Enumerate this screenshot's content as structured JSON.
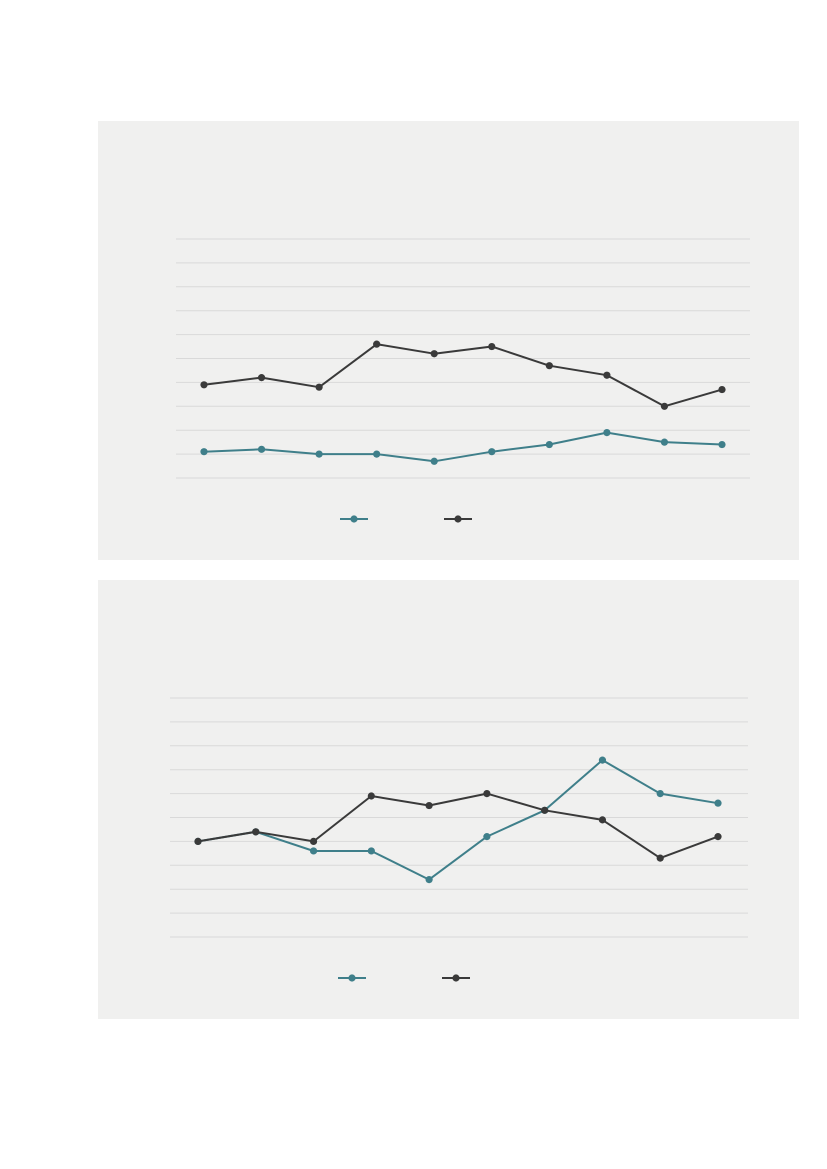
{
  "colors": {
    "series_teal": "#3f7f8a",
    "series_dark": "#3a3a3a",
    "grid": "#d9d9d9",
    "panel_background": "#f0f0ef"
  },
  "chart_data": [
    {
      "type": "line",
      "title": "",
      "xlabel": "",
      "ylabel": "",
      "grid": true,
      "legend_position": "bottom-center",
      "ylim": [
        0,
        10
      ],
      "x": [
        1,
        2,
        3,
        4,
        5,
        6,
        7,
        8,
        9,
        10
      ],
      "series": [
        {
          "color": "#3f7f8a",
          "values": [
            1.1,
            1.2,
            1.0,
            1.0,
            0.7,
            1.1,
            1.4,
            1.9,
            1.5,
            1.4
          ]
        },
        {
          "color": "#3a3a3a",
          "values": [
            3.9,
            4.2,
            3.8,
            5.6,
            5.2,
            5.5,
            4.7,
            4.3,
            3.0,
            3.7
          ]
        }
      ]
    },
    {
      "type": "line",
      "title": "",
      "xlabel": "",
      "ylabel": "",
      "grid": true,
      "legend_position": "bottom-center",
      "ylim": [
        0,
        10
      ],
      "x": [
        1,
        2,
        3,
        4,
        5,
        6,
        7,
        8,
        9,
        10
      ],
      "series": [
        {
          "color": "#3f7f8a",
          "values": [
            4.0,
            4.4,
            3.6,
            3.6,
            2.4,
            4.2,
            5.3,
            7.4,
            6.0,
            5.6
          ]
        },
        {
          "color": "#3a3a3a",
          "values": [
            4.0,
            4.4,
            4.0,
            5.9,
            5.5,
            6.0,
            5.3,
            4.9,
            3.3,
            4.2
          ]
        }
      ]
    }
  ]
}
